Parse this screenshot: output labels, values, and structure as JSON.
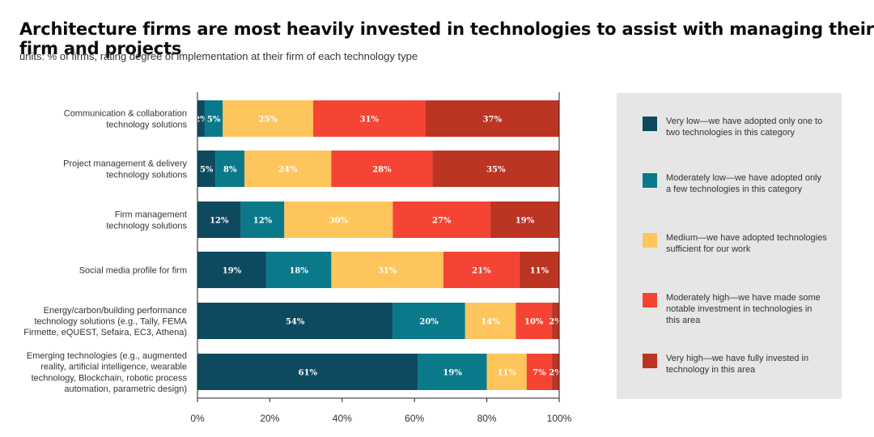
{
  "chart_data": {
    "type": "bar",
    "orientation": "horizontal",
    "stacked": true,
    "title": "Architecture firms are most heavily invested in technologies to assist with managing their firm and projects",
    "subtitle": "units: % of firms, rating degree of implementation at their firm of each technology type",
    "categories": [
      [
        "Communication & collaboration",
        "technology solutions"
      ],
      [
        "Project management & delivery",
        "technology solutions"
      ],
      [
        "Firm management",
        "technology solutions"
      ],
      [
        "Social media profile for firm"
      ],
      [
        "Energy/carbon/building performance",
        "technology solutions (e.g., Tally, FEMA",
        "Firmette, eQUEST, Sefaira, EC3, Athena)"
      ],
      [
        "Emerging technologies (e.g., augmented",
        "reality, artificial intelligence, wearable",
        "technology, Blockchain, robotic process",
        "automation, parametric design)"
      ]
    ],
    "series": [
      {
        "name": "Very low—we have adopted only one to two technologies in this category",
        "color": "#0e4a5f",
        "label_color": "#ffffff",
        "values": [
          2,
          5,
          12,
          19,
          54,
          61
        ]
      },
      {
        "name": "Moderately low—we have adopted only a few technologies in this category",
        "color": "#0a7a8a",
        "label_color": "#ffffff",
        "values": [
          5,
          8,
          12,
          18,
          20,
          19
        ]
      },
      {
        "name": "Medium—we have adopted technologies sufficient for our work",
        "color": "#fdc55c",
        "label_color": "#ffffff",
        "values": [
          25,
          24,
          30,
          31,
          14,
          11
        ]
      },
      {
        "name": "Moderately high—we have made some notable investment in technologies in this area",
        "color": "#f54433",
        "label_color": "#ffffff",
        "values": [
          31,
          28,
          27,
          21,
          10,
          7
        ]
      },
      {
        "name": "Very high—we have fully invested in technology in this area",
        "color": "#bc3422",
        "label_color": "#ffffff",
        "values": [
          37,
          35,
          19,
          11,
          2,
          2
        ]
      }
    ],
    "xlim": [
      0,
      100
    ],
    "x_ticks": [
      "0%",
      "20%",
      "40%",
      "60%",
      "80%",
      "100%"
    ],
    "grid": false,
    "legend_position": "right"
  },
  "legend": {
    "items": [
      [
        "Very low—we have adopted only one to",
        "two technologies in this category"
      ],
      [
        "Moderately low—we have adopted only",
        "a few technologies in this category"
      ],
      [
        "Medium—we have adopted technologies",
        "sufficient for our work"
      ],
      [
        "Moderately high—we have made some",
        "notable investment in technologies in",
        "this area"
      ],
      [
        "Very high—we have fully invested in",
        "technology in this area"
      ]
    ]
  }
}
